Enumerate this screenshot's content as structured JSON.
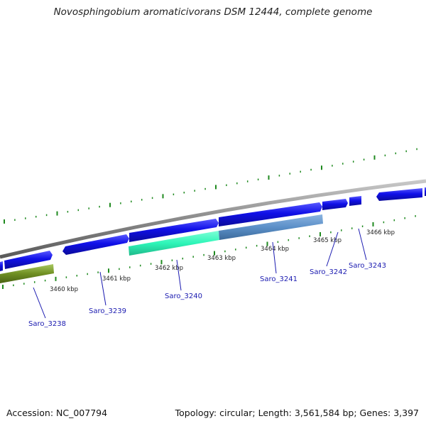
{
  "title": "Novosphingobium aromaticivorans DSM 12444, complete genome",
  "accession": "Accession: NC_007794",
  "summary": "Topology: circular; Length: 3,561,584 bp; Genes: 3,397",
  "colors": {
    "background": "#ffffff",
    "backbone": "#8a8a8a",
    "tick": "#1f8a1f",
    "gene_forward": "#1010e8",
    "gene_highlight_green": "#2ef5b8",
    "gene_highlight_blue": "#5b8fc8",
    "gene_olive": "#6f8f22",
    "label": "#1a1ab0"
  },
  "scale_labels": [
    "3460 kbp",
    "3461 kbp",
    "3462 kbp",
    "3463 kbp",
    "3464 kbp",
    "3465 kbp",
    "3466 kbp"
  ],
  "genes": [
    {
      "name": "Saro_3238",
      "color": "olive"
    },
    {
      "name": "Saro_3239",
      "color": "forward"
    },
    {
      "name": "Saro_3240",
      "color": "highlight_green"
    },
    {
      "name": "Saro_3241",
      "color": "highlight_blue"
    },
    {
      "name": "Saro_3242",
      "color": "forward"
    },
    {
      "name": "Saro_3243",
      "color": "forward"
    }
  ]
}
